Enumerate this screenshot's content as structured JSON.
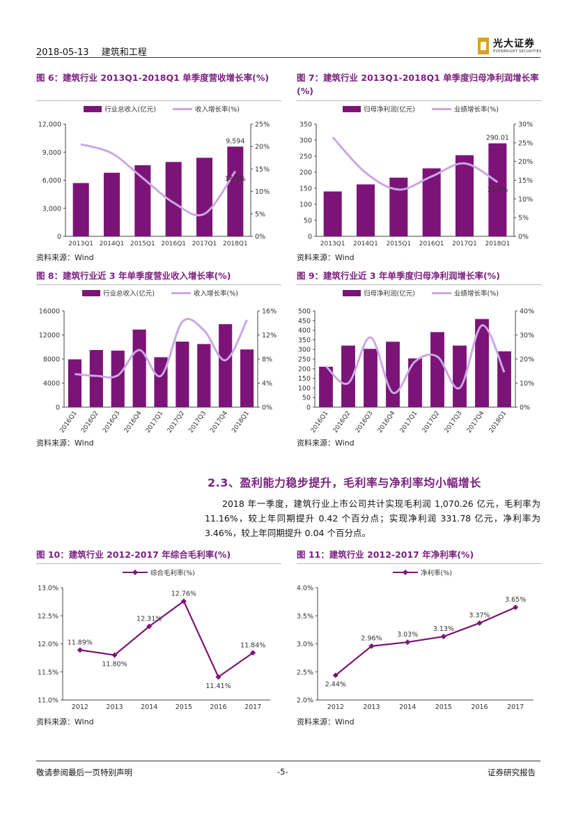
{
  "header": {
    "date": "2018-05-13",
    "sector": "建筑和工程"
  },
  "logo": {
    "name_cn": "光大证券",
    "name_en": "EVERBRIGHT SECURITIES"
  },
  "source_text": "资料来源：Wind",
  "section": {
    "title": "2.3、盈利能力稳步提升，毛利率与净利率均小幅增长",
    "paragraph": "2018 年一季度，建筑行业上市公司共计实现毛利润 1,070.26 亿元，毛利率为 11.16%，较上年同期提升 0.42 个百分点；实现净利润 331.78 亿元，净利率为 3.46%，较上年同期提升 0.04 个百分点。"
  },
  "footer": {
    "left": "敬请参阅最后一页特别声明",
    "center": "-5-",
    "right": "证券研究报告"
  },
  "colors": {
    "bar": "#7b1476",
    "line": "#cba6e6",
    "marker": "#7b1476"
  },
  "chart_data": [
    {
      "id": "fig6",
      "title": "图 6：建筑行业 2013Q1-2018Q1 单季度营收增长率(%)",
      "type": "bar",
      "categories": [
        "2013Q1",
        "2014Q1",
        "2015Q1",
        "2016Q1",
        "2017Q1",
        "2018Q1"
      ],
      "series": [
        {
          "name": "行业总收入(亿元)",
          "kind": "bar",
          "axis": "left",
          "values": [
            5700,
            6800,
            7600,
            7950,
            8400,
            9594
          ]
        },
        {
          "name": "收入增长率(%)",
          "kind": "line",
          "axis": "right",
          "values": [
            20.5,
            18.5,
            13.0,
            7.5,
            5.0,
            14.5
          ]
        }
      ],
      "ylim": [
        0,
        12000
      ],
      "yticks": [
        0,
        3000,
        6000,
        9000,
        12000
      ],
      "ytick_labels": [
        "0",
        "3,000",
        "6,000",
        "9,000",
        "12,000"
      ],
      "y2lim": [
        0,
        25
      ],
      "y2ticks": [
        0,
        5,
        10,
        15,
        20,
        25
      ],
      "y2tick_labels": [
        "0%",
        "5%",
        "10%",
        "15%",
        "20%",
        "25%"
      ],
      "annotations": [
        {
          "text": "9,594"
        },
        {
          "text": "14.5%"
        }
      ]
    },
    {
      "id": "fig7",
      "title": "图 7：建筑行业 2013Q1-2018Q1 单季度归母净利润增长率(%)",
      "type": "bar",
      "categories": [
        "2013Q1",
        "2014Q1",
        "2015Q1",
        "2016Q1",
        "2017Q1",
        "2018Q1"
      ],
      "series": [
        {
          "name": "归母净利润(亿元)",
          "kind": "bar",
          "axis": "left",
          "values": [
            140,
            162,
            183,
            212,
            253,
            290.01
          ]
        },
        {
          "name": "业绩增长率(%)",
          "kind": "line",
          "axis": "right",
          "values": [
            26.5,
            17.0,
            12.5,
            16.0,
            19.5,
            14.5
          ]
        }
      ],
      "ylim": [
        0,
        350
      ],
      "yticks": [
        0,
        50,
        100,
        150,
        200,
        250,
        300,
        350
      ],
      "ytick_labels": [
        "0",
        "50",
        "100",
        "150",
        "200",
        "250",
        "300",
        "350"
      ],
      "y2lim": [
        0,
        30
      ],
      "y2ticks": [
        0,
        5,
        10,
        15,
        20,
        25,
        30
      ],
      "y2tick_labels": [
        "0%",
        "5%",
        "10%",
        "15%",
        "20%",
        "25%",
        "30%"
      ],
      "annotations": [
        {
          "text": "290.01"
        },
        {
          "text": "14.5%"
        }
      ]
    },
    {
      "id": "fig8",
      "title": "图 8：建筑行业近 3 年单季度营业收入增长率(%)",
      "type": "bar",
      "categories": [
        "2016Q1",
        "2016Q2",
        "2016Q3",
        "2016Q4",
        "2017Q1",
        "2017Q2",
        "2017Q3",
        "2017Q4",
        "2018Q1"
      ],
      "series": [
        {
          "name": "行业总收入(亿元)",
          "kind": "bar",
          "axis": "left",
          "values": [
            7950,
            9500,
            9400,
            12900,
            8300,
            10900,
            10500,
            13800,
            9594
          ]
        },
        {
          "name": "收入增长率(%)",
          "kind": "line",
          "axis": "right",
          "values": [
            5.5,
            5.2,
            5.3,
            9.5,
            5.2,
            14.2,
            12.8,
            7.8,
            14.5
          ]
        }
      ],
      "ylim": [
        0,
        16000
      ],
      "yticks": [
        0,
        4000,
        8000,
        12000,
        16000
      ],
      "ytick_labels": [
        "0",
        "4000",
        "8000",
        "12000",
        "16000"
      ],
      "y2lim": [
        0,
        16
      ],
      "y2ticks": [
        0,
        4,
        8,
        12,
        16
      ],
      "y2tick_labels": [
        "0%",
        "4%",
        "8%",
        "12%",
        "16%"
      ]
    },
    {
      "id": "fig9",
      "title": "图 9：建筑行业近 3 年单季度归母净利润增长率(%)",
      "type": "bar",
      "categories": [
        "2016Q1",
        "2016Q2",
        "2016Q3",
        "2016Q4",
        "2017Q1",
        "2017Q2",
        "2017Q3",
        "2017Q4",
        "2018Q1"
      ],
      "series": [
        {
          "name": "归母净利润(亿元)",
          "kind": "bar",
          "axis": "left",
          "values": [
            210,
            320,
            303,
            340,
            253,
            390,
            320,
            458,
            290
          ]
        },
        {
          "name": "业绩增长率(%)",
          "kind": "line",
          "axis": "right",
          "values": [
            17,
            10,
            29,
            6,
            19,
            21,
            8,
            34,
            14.5
          ]
        }
      ],
      "ylim": [
        0,
        500
      ],
      "yticks": [
        0,
        50,
        100,
        150,
        200,
        250,
        300,
        350,
        400,
        450,
        500
      ],
      "ytick_labels": [
        "0",
        "50",
        "100",
        "150",
        "200",
        "250",
        "300",
        "350",
        "400",
        "450",
        "500"
      ],
      "y2lim": [
        0,
        40
      ],
      "y2ticks": [
        0,
        10,
        20,
        30,
        40
      ],
      "y2tick_labels": [
        "0%",
        "10%",
        "20%",
        "30%",
        "40%"
      ]
    },
    {
      "id": "fig10",
      "title": "图 10：建筑行业 2012-2017 年综合毛利率(%)",
      "type": "line",
      "categories": [
        "2012",
        "2013",
        "2014",
        "2015",
        "2016",
        "2017"
      ],
      "series": [
        {
          "name": "综合毛利率(%)",
          "values": [
            11.89,
            11.8,
            12.31,
            12.76,
            11.41,
            11.84
          ]
        }
      ],
      "data_labels": [
        "11.89%",
        "11.80%",
        "12.31%",
        "12.76%",
        "11.41%",
        "11.84%"
      ],
      "ylim": [
        11.0,
        13.0
      ],
      "yticks": [
        11.0,
        11.5,
        12.0,
        12.5,
        13.0
      ],
      "ytick_labels": [
        "11.0%",
        "11.5%",
        "12.0%",
        "12.5%",
        "13.0%"
      ]
    },
    {
      "id": "fig11",
      "title": "图 11：建筑行业 2012-2017 年净利率(%)",
      "type": "line",
      "categories": [
        "2012",
        "2013",
        "2014",
        "2015",
        "2016",
        "2017"
      ],
      "series": [
        {
          "name": "净利率(%)",
          "values": [
            2.44,
            2.96,
            3.03,
            3.13,
            3.37,
            3.65
          ]
        }
      ],
      "data_labels": [
        "2.44%",
        "2.96%",
        "3.03%",
        "3.13%",
        "3.37%",
        "3.65%"
      ],
      "ylim": [
        2.0,
        4.0
      ],
      "yticks": [
        2.0,
        2.5,
        3.0,
        3.5,
        4.0
      ],
      "ytick_labels": [
        "2.0%",
        "2.5%",
        "3.0%",
        "3.5%",
        "4.0%"
      ]
    }
  ]
}
